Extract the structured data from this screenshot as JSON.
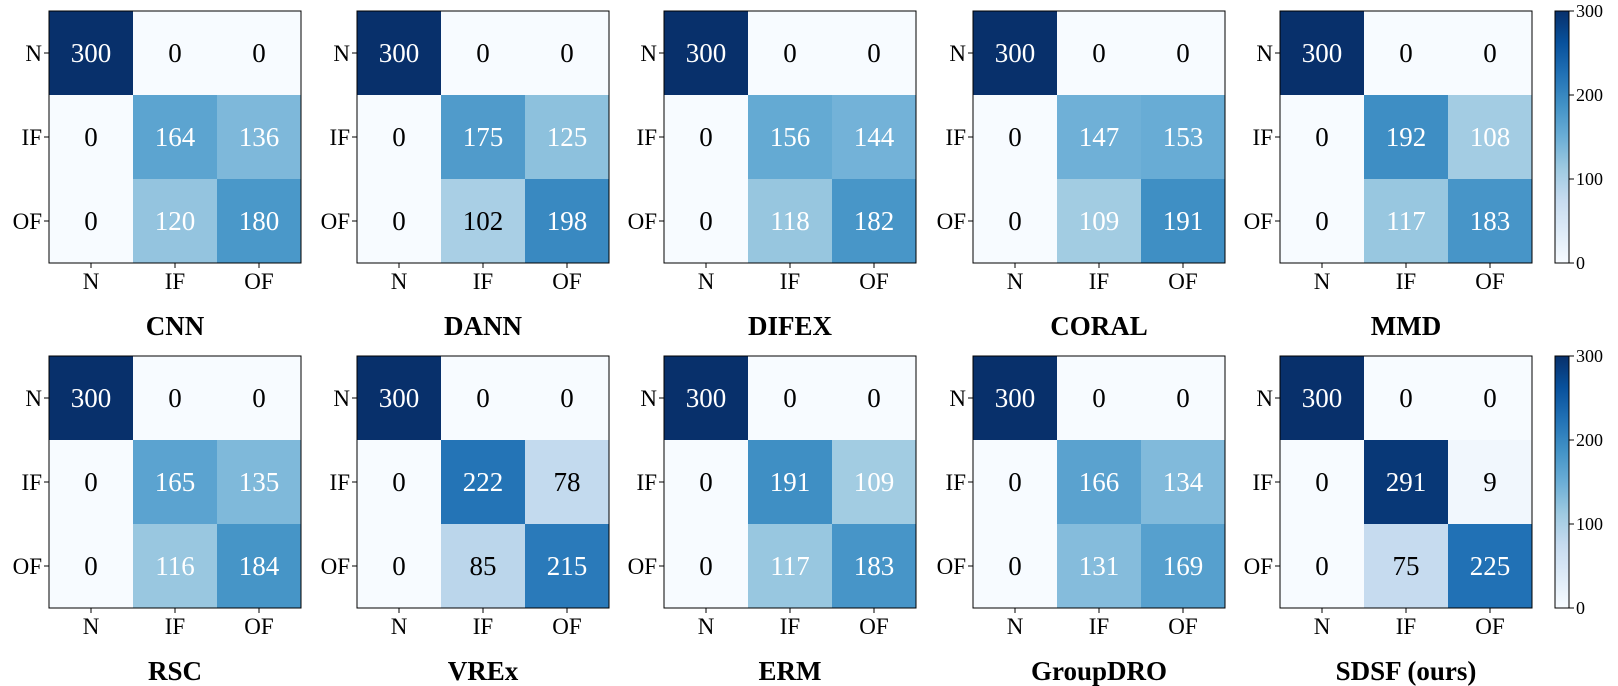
{
  "chart_data": {
    "type": "heatmap",
    "color_scale": {
      "colormap": "Blues",
      "vmin": 0,
      "vmax": 300,
      "colorbar_ticks": [
        0,
        100,
        200,
        300
      ],
      "stops": [
        "#f7fbff",
        "#deebf7",
        "#c6dbef",
        "#9ecae1",
        "#6baed6",
        "#4292c6",
        "#2171b5",
        "#08519c",
        "#08306b"
      ]
    },
    "row_labels": [
      "N",
      "IF",
      "OF"
    ],
    "col_labels": [
      "N",
      "IF",
      "OF"
    ],
    "panels": [
      {
        "title": "CNN",
        "matrix": [
          [
            300,
            0,
            0
          ],
          [
            0,
            164,
            136
          ],
          [
            0,
            120,
            180
          ]
        ]
      },
      {
        "title": "DANN",
        "matrix": [
          [
            300,
            0,
            0
          ],
          [
            0,
            175,
            125
          ],
          [
            0,
            102,
            198
          ]
        ]
      },
      {
        "title": "DIFEX",
        "matrix": [
          [
            300,
            0,
            0
          ],
          [
            0,
            156,
            144
          ],
          [
            0,
            118,
            182
          ]
        ]
      },
      {
        "title": "CORAL",
        "matrix": [
          [
            300,
            0,
            0
          ],
          [
            0,
            147,
            153
          ],
          [
            0,
            109,
            191
          ]
        ]
      },
      {
        "title": "MMD",
        "matrix": [
          [
            300,
            0,
            0
          ],
          [
            0,
            192,
            108
          ],
          [
            0,
            117,
            183
          ]
        ]
      },
      {
        "title": "RSC",
        "matrix": [
          [
            300,
            0,
            0
          ],
          [
            0,
            165,
            135
          ],
          [
            0,
            116,
            184
          ]
        ]
      },
      {
        "title": "VREx",
        "matrix": [
          [
            300,
            0,
            0
          ],
          [
            0,
            222,
            78
          ],
          [
            0,
            85,
            215
          ]
        ]
      },
      {
        "title": "ERM",
        "matrix": [
          [
            300,
            0,
            0
          ],
          [
            0,
            191,
            109
          ],
          [
            0,
            117,
            183
          ]
        ]
      },
      {
        "title": "GroupDRO",
        "matrix": [
          [
            300,
            0,
            0
          ],
          [
            0,
            166,
            134
          ],
          [
            0,
            131,
            169
          ]
        ]
      },
      {
        "title": "SDSF (ours)",
        "matrix": [
          [
            300,
            0,
            0
          ],
          [
            0,
            291,
            9
          ],
          [
            0,
            75,
            225
          ]
        ]
      }
    ]
  }
}
